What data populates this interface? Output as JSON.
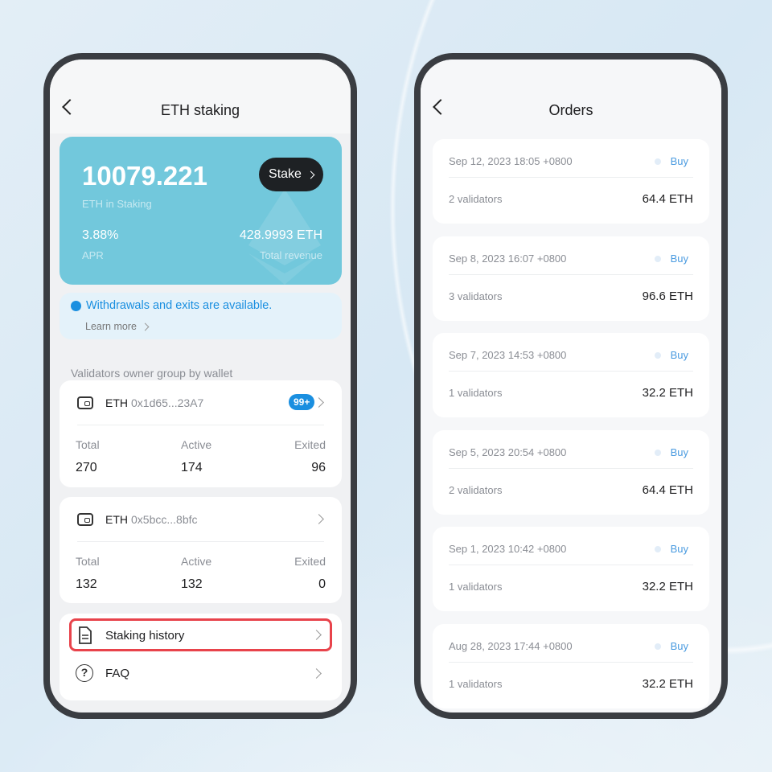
{
  "left": {
    "title": "ETH staking",
    "summary": {
      "amount": "10079.221",
      "amount_label": "ETH in Staking",
      "stake_button": "Stake",
      "apr": "3.88%",
      "apr_label": "APR",
      "revenue": "428.9993 ETH",
      "revenue_label": "Total revenue"
    },
    "notice": {
      "text": "Withdrawals and exits are available.",
      "link": "Learn more"
    },
    "section_label": "Validators owner group by wallet",
    "wallets": [
      {
        "asset": "ETH",
        "address": "0x1d65...23A7",
        "badge": "99+",
        "total_label": "Total",
        "active_label": "Active",
        "exited_label": "Exited",
        "total": "270",
        "active": "174",
        "exited": "96"
      },
      {
        "asset": "ETH",
        "address": "0x5bcc...8bfc",
        "total_label": "Total",
        "active_label": "Active",
        "exited_label": "Exited",
        "total": "132",
        "active": "132",
        "exited": "0"
      }
    ],
    "menu": [
      {
        "label": "Staking history"
      },
      {
        "label": "FAQ"
      }
    ]
  },
  "right": {
    "title": "Orders",
    "orders": [
      {
        "date": "Sep 12, 2023 18:05 +0800",
        "type": "Buy",
        "validators": "2 validators",
        "amount": "64.4 ETH"
      },
      {
        "date": "Sep 8, 2023 16:07 +0800",
        "type": "Buy",
        "validators": "3 validators",
        "amount": "96.6 ETH"
      },
      {
        "date": "Sep 7, 2023 14:53 +0800",
        "type": "Buy",
        "validators": "1 validators",
        "amount": "32.2 ETH"
      },
      {
        "date": "Sep 5, 2023 20:54 +0800",
        "type": "Buy",
        "validators": "2 validators",
        "amount": "64.4 ETH"
      },
      {
        "date": "Sep 1, 2023 10:42 +0800",
        "type": "Buy",
        "validators": "1 validators",
        "amount": "32.2 ETH"
      },
      {
        "date": "Aug 28, 2023 17:44 +0800",
        "type": "Buy",
        "validators": "1 validators",
        "amount": "32.2 ETH"
      }
    ]
  },
  "colors": {
    "card_teal": "#72c8dc",
    "accent_blue": "#1a8fe0",
    "highlight_red": "#e8434b",
    "buy_blue": "#4a9be0"
  }
}
